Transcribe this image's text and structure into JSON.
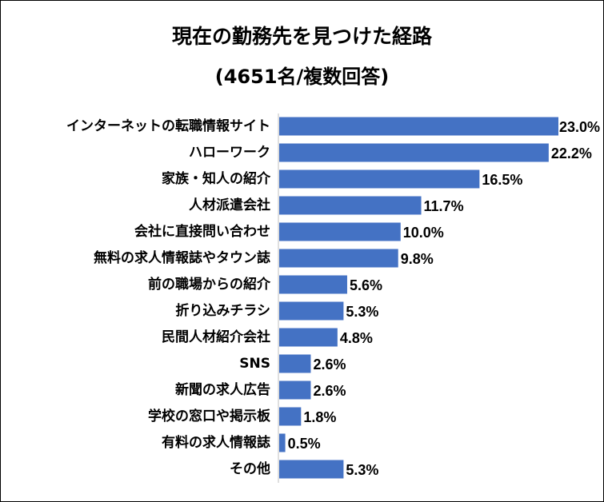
{
  "chart_data": {
    "type": "bar",
    "orientation": "horizontal",
    "title": "現在の勤務先を見つけた経路",
    "subtitle": "(4651名/複数回答)",
    "categories": [
      "インターネットの転職情報サイト",
      "ハローワーク",
      "家族・知人の紹介",
      "人材派遣会社",
      "会社に直接問い合わせ",
      "無料の求人情報誌やタウン誌",
      "前の職場からの紹介",
      "折り込みチラシ",
      "民間人材紹介会社",
      "SNS",
      "新聞の求人広告",
      "学校の窓口や掲示板",
      "有料の求人情報誌",
      "その他"
    ],
    "values": [
      23.0,
      22.2,
      16.5,
      11.7,
      10.0,
      9.8,
      5.6,
      5.3,
      4.8,
      2.6,
      2.6,
      1.8,
      0.5,
      5.3
    ],
    "data_labels": [
      "23.0%",
      "22.2%",
      "16.5%",
      "11.7%",
      "10.0%",
      "9.8%",
      "5.6%",
      "5.3%",
      "4.8%",
      "2.6%",
      "2.6%",
      "1.8%",
      "0.5%",
      "5.3%"
    ],
    "xlim": [
      0,
      23.0
    ],
    "grid": false,
    "legend": "none",
    "bar_color": "#4472C4"
  }
}
